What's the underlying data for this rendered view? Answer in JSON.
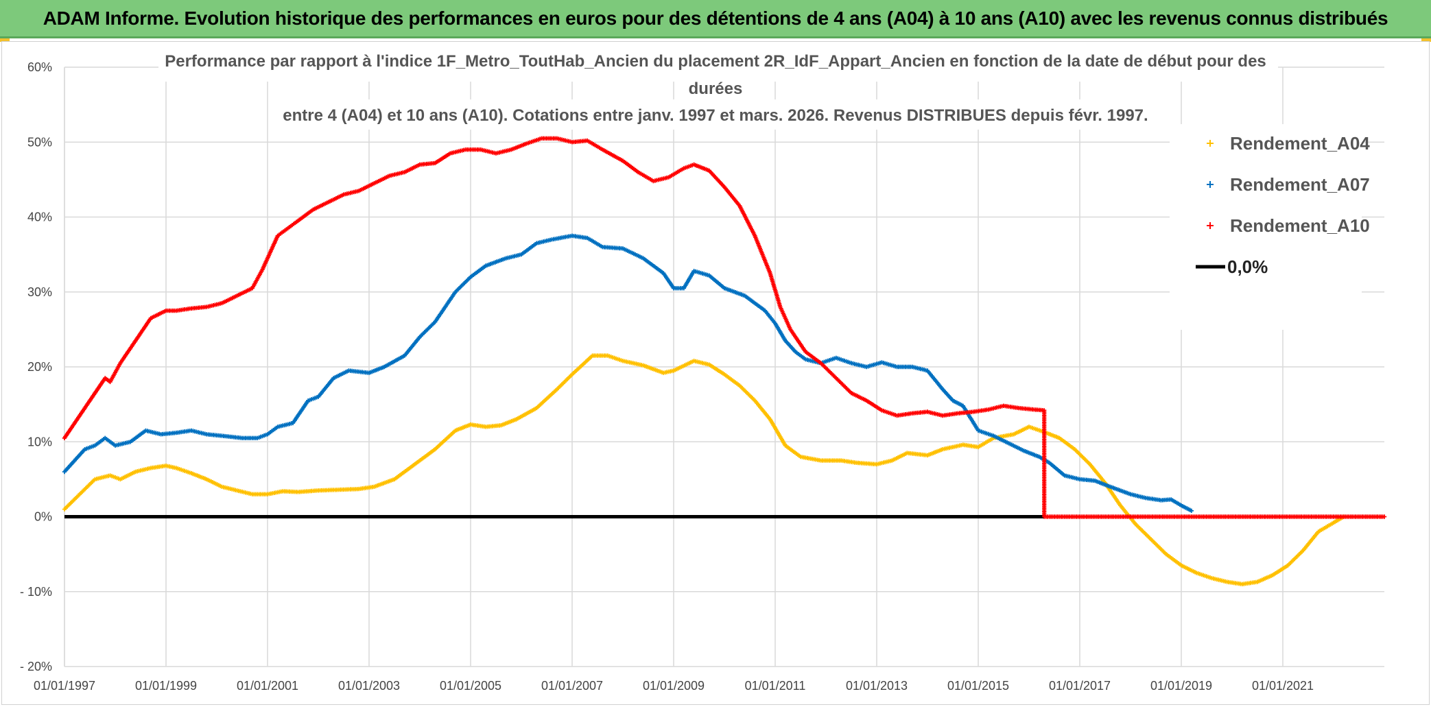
{
  "banner": {
    "title": "ADAM Informe. Evolution historique des performances en euros pour des détentions de 4 ans (A04) à 10 ans (A10) avec les revenus connus distribués"
  },
  "chart_data": {
    "type": "scatter",
    "title_lines": [
      "Performance par rapport à l'indice 1F_Metro_ToutHab_Ancien  du placement 2R_IdF_Appart_Ancien en fonction de la date de début pour des",
      "durées",
      "entre 4 (A04) et 10 ans (A10). Cotations entre janv. 1997 et mars. 2026. Revenus DISTRIBUES depuis févr. 1997."
    ],
    "xlabel": "",
    "ylabel": "",
    "xlim": [
      1997.0,
      2023.0
    ],
    "ylim": [
      -20,
      60
    ],
    "x_ticks": [
      1997,
      1999,
      2001,
      2003,
      2005,
      2007,
      2009,
      2011,
      2013,
      2015,
      2017,
      2019,
      2021
    ],
    "x_tick_labels": [
      "01/01/1997",
      "01/01/1999",
      "01/01/2001",
      "01/01/2003",
      "01/01/2005",
      "01/01/2007",
      "01/01/2009",
      "01/01/2011",
      "01/01/2013",
      "01/01/2015",
      "01/01/2017",
      "01/01/2019",
      "01/01/2021"
    ],
    "y_ticks": [
      -20,
      -10,
      0,
      10,
      20,
      30,
      40,
      50,
      60
    ],
    "y_tick_labels": [
      "- 20%",
      "- 10%",
      "0%",
      "10%",
      "20%",
      "30%",
      "40%",
      "50%",
      "60%"
    ],
    "grid": true,
    "legend_position": "top-right",
    "series": [
      {
        "name": "Rendement_A04",
        "color": "#ffc000",
        "marker": "+",
        "x": [
          1997.0,
          1997.3,
          1997.6,
          1997.9,
          1998.1,
          1998.4,
          1998.7,
          1999.0,
          1999.2,
          1999.5,
          1999.8,
          2000.1,
          2000.4,
          2000.7,
          2001.0,
          2001.3,
          2001.6,
          2002.0,
          2002.4,
          2002.8,
          2003.1,
          2003.5,
          2003.9,
          2004.3,
          2004.7,
          2005.0,
          2005.3,
          2005.6,
          2005.9,
          2006.3,
          2006.7,
          2007.0,
          2007.4,
          2007.7,
          2008.0,
          2008.4,
          2008.8,
          2009.0,
          2009.4,
          2009.7,
          2010.0,
          2010.3,
          2010.6,
          2010.9,
          2011.2,
          2011.5,
          2011.9,
          2012.3,
          2012.6,
          2013.0,
          2013.3,
          2013.6,
          2014.0,
          2014.3,
          2014.7,
          2015.0,
          2015.3,
          2015.7,
          2016.0,
          2016.3,
          2016.6,
          2016.9,
          2017.2,
          2017.5,
          2017.8,
          2018.1,
          2018.4,
          2018.7,
          2019.0,
          2019.3,
          2019.6,
          2019.9,
          2020.2,
          2020.5,
          2020.8,
          2021.1,
          2021.4,
          2021.7,
          2022.0,
          2022.2
        ],
        "y": [
          1,
          3,
          5,
          5.5,
          5,
          6,
          6.5,
          6.8,
          6.5,
          5.8,
          5,
          4,
          3.5,
          3,
          3,
          3.4,
          3.3,
          3.5,
          3.6,
          3.7,
          4,
          5,
          7,
          9,
          11.5,
          12.3,
          12,
          12.2,
          13,
          14.5,
          17,
          19,
          21.5,
          21.5,
          20.8,
          20.2,
          19.2,
          19.5,
          20.8,
          20.3,
          19,
          17.5,
          15.5,
          13,
          9.5,
          8,
          7.5,
          7.5,
          7.2,
          7,
          7.5,
          8.5,
          8.2,
          9,
          9.6,
          9.3,
          10.5,
          11,
          12,
          11.3,
          10.5,
          9,
          7,
          4.5,
          1.5,
          -1,
          -3,
          -5,
          -6.5,
          -7.5,
          -8.2,
          -8.7,
          -9,
          -8.7,
          -7.8,
          -6.5,
          -4.5,
          -2,
          -0.8,
          0
        ]
      },
      {
        "name": "Rendement_A07",
        "color": "#0070c0",
        "marker": "+",
        "x": [
          1997.0,
          1997.2,
          1997.4,
          1997.6,
          1997.8,
          1998.0,
          1998.3,
          1998.6,
          1998.9,
          1999.2,
          1999.5,
          1999.8,
          2000.1,
          2000.5,
          2000.8,
          2001.0,
          2001.2,
          2001.5,
          2001.8,
          2002.0,
          2002.3,
          2002.6,
          2003.0,
          2003.3,
          2003.7,
          2004.0,
          2004.3,
          2004.7,
          2005.0,
          2005.3,
          2005.7,
          2006.0,
          2006.3,
          2006.6,
          2007.0,
          2007.3,
          2007.6,
          2008.0,
          2008.4,
          2008.8,
          2009.0,
          2009.2,
          2009.4,
          2009.7,
          2010.0,
          2010.4,
          2010.8,
          2011.0,
          2011.2,
          2011.4,
          2011.6,
          2011.9,
          2012.2,
          2012.5,
          2012.8,
          2013.1,
          2013.4,
          2013.7,
          2014.0,
          2014.3,
          2014.5,
          2014.7,
          2015.0,
          2015.3,
          2015.6,
          2015.9,
          2016.2,
          2016.4,
          2016.7,
          2017.0,
          2017.3,
          2017.6,
          2018.0,
          2018.3,
          2018.6,
          2018.8,
          2019.0,
          2019.2
        ],
        "y": [
          6,
          7.5,
          9,
          9.5,
          10.5,
          9.5,
          10,
          11.5,
          11,
          11.2,
          11.5,
          11,
          10.8,
          10.5,
          10.5,
          11,
          12,
          12.5,
          15.5,
          16,
          18.5,
          19.5,
          19.2,
          20,
          21.5,
          24,
          26,
          30,
          32,
          33.5,
          34.5,
          35,
          36.5,
          37,
          37.5,
          37.2,
          36,
          35.8,
          34.5,
          32.5,
          30.5,
          30.5,
          32.8,
          32.2,
          30.5,
          29.5,
          27.5,
          25.8,
          23.5,
          22,
          21,
          20.5,
          21.2,
          20.5,
          20,
          20.6,
          20,
          20,
          19.5,
          17,
          15.5,
          14.8,
          11.5,
          10.8,
          9.8,
          8.8,
          8,
          7.2,
          5.5,
          5,
          4.8,
          4,
          3,
          2.5,
          2.2,
          2.3,
          1.5,
          0.8
        ]
      },
      {
        "name": "Rendement_A10",
        "color": "#ff0000",
        "marker": "+",
        "x": [
          1997.0,
          1997.2,
          1997.4,
          1997.6,
          1997.8,
          1997.9,
          1998.1,
          1998.4,
          1998.7,
          1999.0,
          1999.2,
          1999.5,
          1999.8,
          2000.1,
          2000.4,
          2000.7,
          2000.9,
          2001.2,
          2001.4,
          2001.6,
          2001.9,
          2002.2,
          2002.5,
          2002.8,
          2003.1,
          2003.4,
          2003.7,
          2004.0,
          2004.3,
          2004.6,
          2004.9,
          2005.2,
          2005.5,
          2005.8,
          2006.1,
          2006.4,
          2006.7,
          2007.0,
          2007.3,
          2007.6,
          2008.0,
          2008.3,
          2008.6,
          2008.9,
          2009.2,
          2009.4,
          2009.7,
          2010.0,
          2010.3,
          2010.6,
          2010.9,
          2011.1,
          2011.3,
          2011.6,
          2011.9,
          2012.2,
          2012.5,
          2012.8,
          2013.1,
          2013.4,
          2013.7,
          2014.0,
          2014.3,
          2014.6,
          2014.9,
          2015.2,
          2015.5,
          2015.8,
          2016.1,
          2016.3,
          2016.3,
          2017.0,
          2018.0,
          2019.0,
          2020.0,
          2021.0,
          2022.0,
          2023.0
        ],
        "y": [
          10.5,
          12.5,
          14.5,
          16.5,
          18.5,
          18,
          20.5,
          23.5,
          26.5,
          27.5,
          27.5,
          27.8,
          28,
          28.5,
          29.5,
          30.5,
          33,
          37.5,
          38.5,
          39.5,
          41,
          42,
          43,
          43.5,
          44.5,
          45.5,
          46,
          47,
          47.2,
          48.5,
          49,
          49,
          48.5,
          49,
          49.8,
          50.5,
          50.5,
          50,
          50.2,
          49,
          47.5,
          46,
          44.8,
          45.3,
          46.5,
          47,
          46.2,
          44,
          41.5,
          37.5,
          32.5,
          28,
          25,
          22,
          20.5,
          18.5,
          16.5,
          15.5,
          14.2,
          13.5,
          13.8,
          14,
          13.5,
          13.8,
          14,
          14.3,
          14.8,
          14.5,
          14.3,
          14.2,
          0,
          0,
          0,
          0,
          0,
          0,
          0,
          0
        ]
      },
      {
        "name": "0,0%",
        "color": "#000000",
        "marker": "line",
        "x": [
          1997.0,
          2016.3
        ],
        "y": [
          0,
          0
        ]
      }
    ]
  }
}
